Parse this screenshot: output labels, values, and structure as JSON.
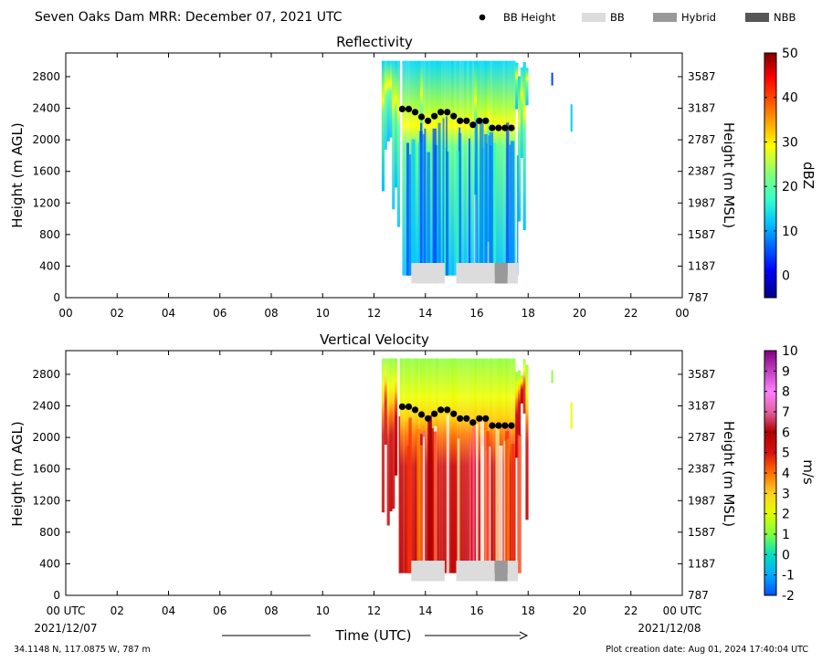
{
  "header": {
    "title": "Seven Oaks Dam MRR:  December 07, 2021 UTC",
    "legend": [
      {
        "label": "BB Height",
        "kind": "dot",
        "color": "#000000"
      },
      {
        "label": "BB",
        "kind": "rect",
        "color": "#dcdcdc"
      },
      {
        "label": "Hybrid",
        "kind": "rect",
        "color": "#999999"
      },
      {
        "label": "NBB",
        "kind": "rect",
        "color": "#555555"
      }
    ]
  },
  "footer": {
    "location": "34.1148 N, 117.0875 W, 787 m",
    "creation": "Plot creation date: Aug 01, 2024 17:40:04 UTC",
    "time_axis_label": "Time (UTC)",
    "date_left": "2021/12/07",
    "date_right": "2021/12/08"
  },
  "chart_data": [
    {
      "type": "heatmap",
      "title": "Reflectivity",
      "ylabel": "Height (m AGL)",
      "y2label": "Height (m MSL)",
      "x_ticks": [
        "00",
        "02",
        "04",
        "06",
        "08",
        "10",
        "12",
        "14",
        "16",
        "18",
        "20",
        "22",
        "00"
      ],
      "xlim": [
        0,
        24
      ],
      "y_ticks": [
        0,
        400,
        800,
        1200,
        1600,
        2000,
        2400,
        2800
      ],
      "y2_ticks": [
        "787",
        "1187",
        "1587",
        "1987",
        "2387",
        "2787",
        "3187",
        "3587"
      ],
      "ylim": [
        0,
        3100
      ],
      "colorbar": {
        "label": "dBZ",
        "min": -5,
        "max": 50,
        "ticks": [
          0,
          10,
          20,
          30,
          40,
          50
        ]
      },
      "echo_extent": {
        "time_start": 12.3,
        "time_end": 18.0,
        "height_min": 280,
        "height_max": 3000
      },
      "bb_height": {
        "time": [
          13.1,
          13.35,
          13.6,
          13.85,
          14.1,
          14.35,
          14.6,
          14.85,
          15.1,
          15.35,
          15.6,
          15.85,
          16.1,
          16.35,
          16.6,
          16.85,
          17.1,
          17.35
        ],
        "height": [
          2390,
          2390,
          2350,
          2290,
          2240,
          2300,
          2350,
          2350,
          2300,
          2240,
          2240,
          2190,
          2240,
          2240,
          2150,
          2150,
          2150,
          2150
        ]
      },
      "bb_type_bar": [
        {
          "start": 13.45,
          "end": 14.75,
          "type": "BB"
        },
        {
          "start": 15.2,
          "end": 16.7,
          "type": "BB"
        },
        {
          "start": 16.7,
          "end": 17.2,
          "type": "Hybrid"
        },
        {
          "start": 17.2,
          "end": 17.6,
          "type": "BB"
        }
      ]
    },
    {
      "type": "heatmap",
      "title": "Vertical Velocity",
      "ylabel": "Height (m AGL)",
      "y2label": "Height (m MSL)",
      "x_ticks": [
        "00 UTC",
        "02",
        "04",
        "06",
        "08",
        "10",
        "12",
        "14",
        "16",
        "18",
        "20",
        "22",
        "00 UTC"
      ],
      "xlim": [
        0,
        24
      ],
      "y_ticks": [
        0,
        400,
        800,
        1200,
        1600,
        2000,
        2400,
        2800
      ],
      "y2_ticks": [
        "787",
        "1187",
        "1587",
        "1987",
        "2387",
        "2787",
        "3187",
        "3587"
      ],
      "ylim": [
        0,
        3100
      ],
      "colorbar": {
        "label": "m/s",
        "min": -2,
        "max": 10,
        "ticks": [
          -2,
          -1,
          0,
          1,
          2,
          3,
          4,
          5,
          6,
          7,
          8,
          9,
          10
        ]
      },
      "echo_extent": {
        "time_start": 12.3,
        "time_end": 18.0,
        "height_min": 280,
        "height_max": 3000
      },
      "bb_height": {
        "time": [
          13.1,
          13.35,
          13.6,
          13.85,
          14.1,
          14.35,
          14.6,
          14.85,
          15.1,
          15.35,
          15.6,
          15.85,
          16.1,
          16.35,
          16.6,
          16.85,
          17.1,
          17.35
        ],
        "height": [
          2390,
          2390,
          2350,
          2290,
          2240,
          2300,
          2350,
          2350,
          2300,
          2240,
          2240,
          2190,
          2240,
          2240,
          2150,
          2150,
          2150,
          2150
        ]
      },
      "bb_type_bar": [
        {
          "start": 13.45,
          "end": 14.75,
          "type": "BB"
        },
        {
          "start": 15.2,
          "end": 16.7,
          "type": "BB"
        },
        {
          "start": 16.7,
          "end": 17.2,
          "type": "Hybrid"
        },
        {
          "start": 17.2,
          "end": 17.6,
          "type": "BB"
        }
      ]
    }
  ]
}
